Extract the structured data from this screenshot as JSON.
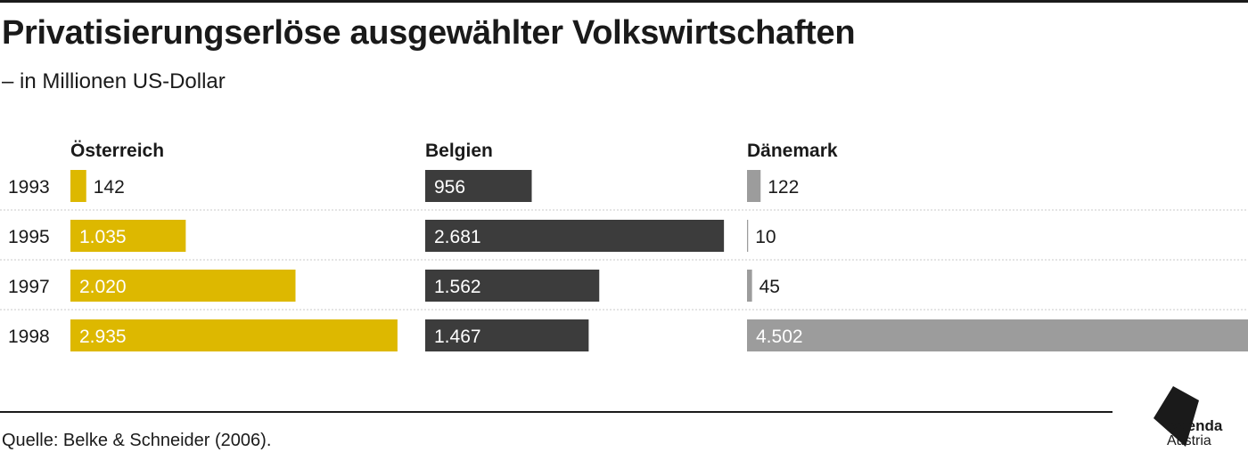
{
  "title": "Privatisierungserlöse ausgewählter Volkswirtschaften",
  "subtitle": "– in Millionen US-Dollar",
  "source": "Quelle: Belke & Schneider (2006).",
  "logo": {
    "line1": "Agenda",
    "line2": "Austria"
  },
  "chart_data": {
    "type": "bar",
    "orientation": "horizontal",
    "categories": [
      "1993",
      "1995",
      "1997",
      "1998"
    ],
    "series": [
      {
        "name": "Österreich",
        "values": [
          142,
          1035,
          2020,
          2935
        ],
        "labels": [
          "142",
          "1.035",
          "2.020",
          "2.935"
        ],
        "color": "#ddb800"
      },
      {
        "name": "Belgien",
        "values": [
          956,
          2681,
          1562,
          1467
        ],
        "labels": [
          "956",
          "2.681",
          "1.562",
          "1.467"
        ],
        "color": "#3c3c3c"
      },
      {
        "name": "Dänemark",
        "values": [
          122,
          10,
          45,
          4502
        ],
        "labels": [
          "122",
          "10",
          "45",
          "4.502"
        ],
        "color": "#9c9c9c"
      }
    ],
    "layout": "small multiples, one panel per country",
    "grid": false
  }
}
